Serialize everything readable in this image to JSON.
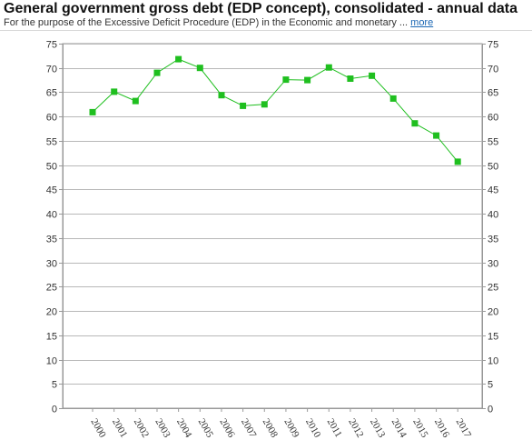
{
  "header": {
    "title": "General government gross debt (EDP concept), consolidated - annual data",
    "subtitle": "For the purpose of the Excessive Deficit Procedure (EDP) in the Economic and monetary ...",
    "more_label": "more"
  },
  "colors": {
    "series": "#1fbf1f",
    "grid": "#b8b8b8",
    "axis": "#999999",
    "text": "#333333",
    "link": "#1a66b3"
  },
  "chart_data": {
    "type": "line",
    "title": "General government gross debt (EDP concept), consolidated - annual data",
    "xlabel": "",
    "ylabel": "",
    "x": [
      "2000",
      "2001",
      "2002",
      "2003",
      "2004",
      "2005",
      "2006",
      "2007",
      "2008",
      "2009",
      "2010",
      "2011",
      "2012",
      "2013",
      "2014",
      "2015",
      "2016",
      "2017"
    ],
    "series": [
      {
        "values": [
          60.9,
          65.1,
          63.2,
          69.0,
          71.8,
          70.0,
          64.4,
          62.2,
          62.5,
          67.6,
          67.5,
          70.1,
          67.8,
          68.4,
          63.7,
          58.6,
          56.1,
          50.7
        ],
        "color": "#1fbf1f",
        "marker": "square"
      }
    ],
    "ylim": [
      0,
      75
    ],
    "yticks": [
      0,
      5,
      10,
      15,
      20,
      25,
      30,
      35,
      40,
      45,
      50,
      55,
      60,
      65,
      70,
      75
    ],
    "grid": true,
    "right_axis_mirrored": true,
    "legend": "none"
  }
}
